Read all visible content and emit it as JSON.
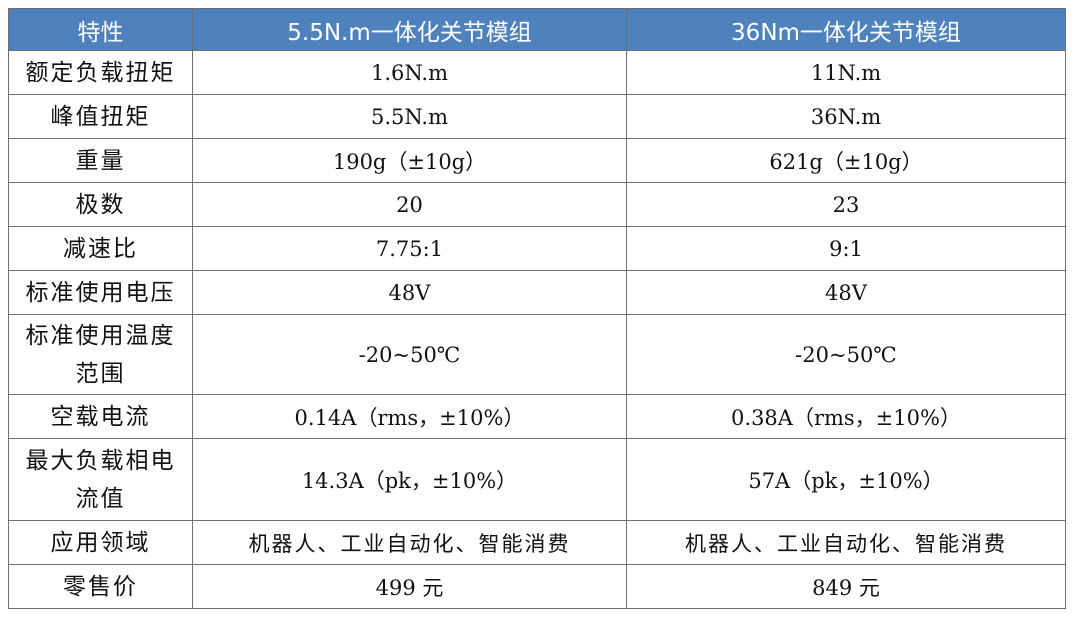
{
  "table": {
    "headers": [
      "特性",
      "5.5N.m一体化关节模组",
      "36Nm一体化关节模组"
    ],
    "rows": [
      {
        "feature": "额定负载扭矩",
        "v1": "1.6N.m",
        "v2": "11N.m"
      },
      {
        "feature": "峰值扭矩",
        "v1": "5.5N.m",
        "v2": "36N.m"
      },
      {
        "feature": "重量",
        "v1": "190g（±10g）",
        "v2": "621g（±10g）"
      },
      {
        "feature": "极数",
        "v1": "20",
        "v2": "23"
      },
      {
        "feature": "减速比",
        "v1": "7.75:1",
        "v2": "9:1"
      },
      {
        "feature": "标准使用电压",
        "v1": "48V",
        "v2": "48V"
      },
      {
        "feature": "标准使用温度范围",
        "v1": "-20~50℃",
        "v2": "-20~50℃"
      },
      {
        "feature": "空载电流",
        "v1": "0.14A（rms，±10%）",
        "v2": "0.38A（rms，±10%）"
      },
      {
        "feature": "最大负载相电流值",
        "v1": "14.3A（pk，±10%）",
        "v2": "57A（pk，±10%）"
      },
      {
        "feature": "应用领域",
        "v1": "机器人、工业自动化、智能消费",
        "v2": "机器人、工业自动化、智能消费"
      },
      {
        "feature": "零售价",
        "v1": "499 元",
        "v2": "849 元"
      }
    ]
  }
}
